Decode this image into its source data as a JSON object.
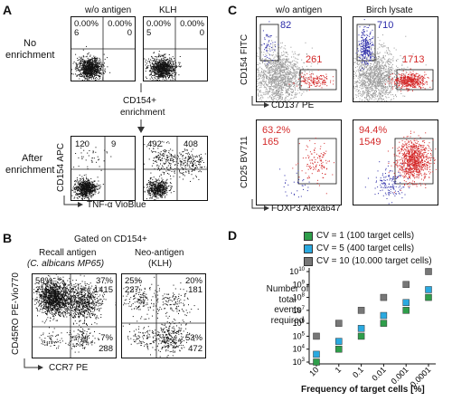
{
  "panel_labels": {
    "a": "A",
    "b": "B",
    "c": "C",
    "d": "D"
  },
  "panelA": {
    "col_headers": [
      "w/o antigen",
      "KLH"
    ],
    "row_labels": {
      "top_l1": "No",
      "top_l2": "enrichment",
      "bottom_l1": "After",
      "bottom_l2": "enrichment"
    },
    "arrow_l1": "CD154+",
    "arrow_l2": "enrichment",
    "ylabel": "CD154 APC",
    "xlabel": "TNF-α VioBlue",
    "top": [
      {
        "ul": "0.00%",
        "ul2": "6",
        "ur": "0.00%",
        "ur2": "0"
      },
      {
        "ul": "0.00%",
        "ul2": "5",
        "ur": "0.00%",
        "ur2": "0"
      }
    ],
    "bottom": [
      {
        "ul": "120",
        "ur": "9"
      },
      {
        "ul": "492",
        "ur": "408"
      }
    ]
  },
  "panelB": {
    "title": "Gated on CD154+",
    "col1_l1": "Recall antigen",
    "col1_l2": "(C. albicans MP65)",
    "col2_l1": "Neo-antigen",
    "col2_l2": "(KLH)",
    "ylabel": "CD45RO PE-Vio770",
    "xlabel": "CCR7 PE",
    "plots": [
      {
        "ul1": "56%",
        "ul2": "2155",
        "ur1": "37%",
        "ur2": "1415",
        "lr1": "7%",
        "lr2": "288"
      },
      {
        "ul1": "25%",
        "ul2": "227",
        "ur1": "20%",
        "ur2": "181",
        "lr1": "53%",
        "lr2": "472"
      }
    ]
  },
  "panelC": {
    "col_headers": [
      "w/o antigen",
      "Birch lysate"
    ],
    "top_ylabel": "CD154 FITC",
    "top_xlabel": "CD137 PE",
    "bottom_ylabel": "CD25 BV711",
    "bottom_xlabel": "FOXP3 Alexa647",
    "top": [
      {
        "blue": "82",
        "red": "261"
      },
      {
        "blue": "710",
        "red": "1713"
      }
    ],
    "bottom": [
      {
        "pct": "63.2%",
        "n": "165"
      },
      {
        "pct": "94.4%",
        "n": "1549"
      }
    ],
    "colors": {
      "blue": "#2a2aa8",
      "red": "#d42a2a",
      "gray": "#9a9a9a"
    }
  },
  "chart_data": {
    "type": "scatter",
    "ylabel": "Number of total events required",
    "xlabel": "Frequency of target cells [%]",
    "categories": [
      "10",
      "1",
      "0.1",
      "0.01",
      "0.001",
      "0.0001"
    ],
    "y_tick_exponents": [
      3,
      4,
      5,
      6,
      7,
      8,
      9,
      10
    ],
    "ylim_log10": [
      3,
      10
    ],
    "series": [
      {
        "name": "CV = 1   (100 target cells)",
        "color": "#2e9e4a",
        "values": [
          1000,
          10000,
          100000,
          1000000,
          10000000,
          100000000
        ]
      },
      {
        "name": "CV = 5   (400 target cells)",
        "color": "#2aa9e0",
        "values": [
          4000,
          40000,
          400000,
          4000000,
          40000000,
          400000000
        ]
      },
      {
        "name": "CV = 10 (10.000 target cells)",
        "color": "#777777",
        "values": [
          100000,
          1000000,
          10000000,
          100000000,
          1000000000,
          10000000000
        ]
      }
    ]
  }
}
